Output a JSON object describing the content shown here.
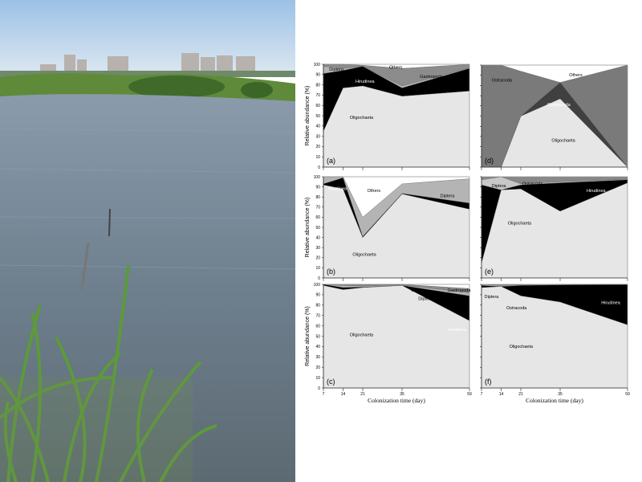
{
  "photo": {
    "description_icon": "pond-photo"
  },
  "chart_data": {
    "type": "area",
    "stacked": true,
    "x": [
      7,
      14,
      21,
      35,
      59
    ],
    "xlabel": "Colonization time (day)",
    "ylabel": "Relative abundance  (%)",
    "ylim": [
      0,
      100
    ],
    "yticks": [
      0,
      10,
      20,
      30,
      40,
      50,
      60,
      70,
      80,
      90,
      100
    ],
    "xticks": [
      7,
      14,
      21,
      35,
      59
    ],
    "panels": [
      {
        "label": "(a)",
        "series": [
          {
            "name": "Oligochaeta",
            "color": "#e6e6e6",
            "values": [
              35,
              77,
              79,
              69,
              74
            ]
          },
          {
            "name": "Hirudinea",
            "color": "#000000",
            "values": [
              56,
              17,
              19,
              8,
              22
            ]
          },
          {
            "name": "Diptera",
            "color": "#b4b4b4",
            "values": [
              7,
              2,
              0,
              2,
              0.5
            ]
          },
          {
            "name": "Gastropoda",
            "color": "#8c8c8c",
            "values": [
              2,
              4,
              1,
              17,
              3.5
            ]
          },
          {
            "name": "Others",
            "color": "#ffffff",
            "values": [
              0,
              0,
              1,
              4,
              0
            ]
          }
        ]
      },
      {
        "label": "(b)",
        "series": [
          {
            "name": "Oligochaeta",
            "color": "#e6e6e6",
            "values": [
              92,
              88,
              40,
              83,
              68
            ]
          },
          {
            "name": "Hirudinea",
            "color": "#000000",
            "values": [
              1,
              11,
              1,
              0.5,
              6
            ]
          },
          {
            "name": "Diptera",
            "color": "#b4b4b4",
            "values": [
              7,
              1,
              19,
              9.5,
              24
            ]
          },
          {
            "name": "Others",
            "color": "#ffffff",
            "values": [
              0,
              0,
              40,
              7,
              2
            ]
          }
        ]
      },
      {
        "label": "(c)",
        "series": [
          {
            "name": "Oligochaeta",
            "color": "#e6e6e6",
            "values": [
              99,
              95,
              97,
              99,
              65
            ]
          },
          {
            "name": "Hirudinea",
            "color": "#000000",
            "values": [
              1,
              2,
              0.5,
              0,
              24
            ]
          },
          {
            "name": "Diptera",
            "color": "#b4b4b4",
            "values": [
              0,
              2,
              1,
              0.5,
              3
            ]
          },
          {
            "name": "Gastropoda",
            "color": "#8c8c8c",
            "values": [
              0,
              1,
              1.5,
              0.5,
              4
            ]
          },
          {
            "name": "Others",
            "color": "#ffffff",
            "values": [
              0,
              0,
              0,
              0,
              4
            ]
          }
        ]
      },
      {
        "label": "(d)",
        "series": [
          {
            "name": "Oligochaeta",
            "color": "#e6e6e6",
            "values": [
              0,
              0,
              50,
              67,
              0
            ]
          },
          {
            "name": "Gastropoda",
            "color": "#404040",
            "values": [
              0,
              0,
              0,
              16,
              0
            ]
          },
          {
            "name": "Ostracoda",
            "color": "#7a7a7a",
            "values": [
              100,
              100,
              44,
              0,
              100
            ]
          },
          {
            "name": "Others",
            "color": "#ffffff",
            "values": [
              0,
              0,
              6,
              17,
              0
            ]
          }
        ]
      },
      {
        "label": "(e)",
        "series": [
          {
            "name": "Oligochaeta",
            "color": "#e6e6e6",
            "values": [
              15,
              87,
              88,
              66,
              94
            ]
          },
          {
            "name": "Hirudinea",
            "color": "#000000",
            "values": [
              77,
              0,
              4,
              28,
              3
            ]
          },
          {
            "name": "Diptera",
            "color": "#c8c8c8",
            "values": [
              5,
              13,
              1,
              1,
              0.5
            ]
          },
          {
            "name": "Ostracoda",
            "color": "#888888",
            "values": [
              3,
              0,
              7,
              5,
              2.5
            ]
          }
        ]
      },
      {
        "label": "(f)",
        "series": [
          {
            "name": "Oligochaeta",
            "color": "#e6e6e6",
            "values": [
              97,
              98,
              89,
              83,
              61
            ]
          },
          {
            "name": "Hirudinea",
            "color": "#000000",
            "values": [
              2,
              0,
              10,
              16.5,
              39
            ]
          },
          {
            "name": "Diptera",
            "color": "#b4b4b4",
            "values": [
              1,
              1,
              0.5,
              0.5,
              0
            ]
          },
          {
            "name": "Ostracoda",
            "color": "#888888",
            "values": [
              0,
              1,
              0.5,
              0,
              0
            ]
          }
        ]
      }
    ]
  }
}
